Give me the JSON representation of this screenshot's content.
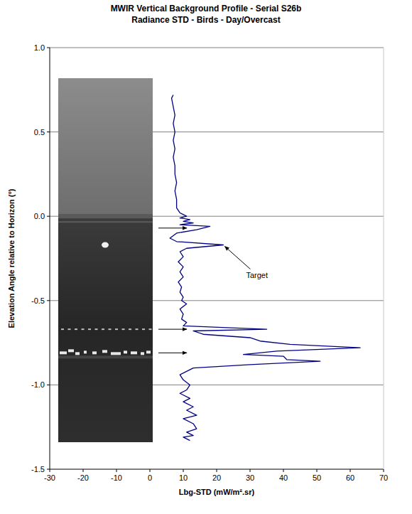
{
  "chart_data": {
    "type": "line",
    "title": "MWIR Vertical Background Profile - Serial S26b",
    "subtitle": "Radiance STD - Birds - Day/Overcast",
    "x_label": "Lbg-STD (mW/m².sr)",
    "y_label": "Elevation Angle relative to Horizon (°)",
    "color": "#000080",
    "grid": true,
    "xlim": [
      -30,
      70
    ],
    "xticks": [
      -30,
      -20,
      -10,
      0,
      10,
      20,
      30,
      40,
      50,
      60,
      70
    ],
    "ylim": [
      -1.5,
      1.0
    ],
    "yticks": [
      {
        "value": -1.5,
        "label": "-1.5"
      },
      {
        "value": -1.0,
        "label": "-1.0"
      },
      -0.5,
      {
        "value": 0.0,
        "label": "0.0"
      },
      0.5,
      {
        "value": 1.0,
        "label": "1.0"
      }
    ],
    "x": [
      7,
      6.5,
      7,
      7.5,
      7,
      7.5,
      7,
      7.5,
      7,
      7.5,
      7.5,
      8,
      7.5,
      8,
      8,
      9,
      11,
      9,
      12,
      10,
      13,
      9,
      18,
      14,
      8,
      6,
      8,
      22,
      11,
      9,
      10,
      8.5,
      10,
      9,
      10,
      8.5,
      9.5,
      9,
      10,
      9.5,
      11,
      9,
      10,
      9.5,
      11,
      10,
      35,
      13,
      16,
      30,
      33,
      42,
      63,
      38,
      28,
      40,
      41,
      51,
      30,
      13,
      11,
      9,
      10,
      12,
      11,
      9,
      12,
      10,
      13,
      11,
      14,
      10,
      13,
      14,
      11,
      13,
      10,
      12
    ],
    "values": [
      0.72,
      0.7,
      0.65,
      0.6,
      0.55,
      0.5,
      0.45,
      0.4,
      0.35,
      0.3,
      0.25,
      0.2,
      0.15,
      0.1,
      0.05,
      0.02,
      0.0,
      -0.01,
      -0.02,
      -0.03,
      -0.04,
      -0.05,
      -0.06,
      -0.08,
      -0.1,
      -0.13,
      -0.15,
      -0.17,
      -0.19,
      -0.21,
      -0.24,
      -0.27,
      -0.3,
      -0.33,
      -0.36,
      -0.39,
      -0.42,
      -0.45,
      -0.48,
      -0.5,
      -0.52,
      -0.55,
      -0.58,
      -0.61,
      -0.63,
      -0.65,
      -0.67,
      -0.68,
      -0.7,
      -0.72,
      -0.74,
      -0.76,
      -0.78,
      -0.8,
      -0.82,
      -0.83,
      -0.85,
      -0.86,
      -0.88,
      -0.9,
      -0.92,
      -0.94,
      -0.97,
      -1.0,
      -1.03,
      -1.05,
      -1.08,
      -1.1,
      -1.13,
      -1.15,
      -1.18,
      -1.2,
      -1.23,
      -1.26,
      -1.28,
      -1.3,
      -1.31,
      -1.33
    ],
    "annotations": [
      {
        "text": "Target",
        "x": 22,
        "y": -0.17
      }
    ],
    "arrow_elevations": [
      -0.07,
      -0.67,
      -0.81
    ]
  }
}
